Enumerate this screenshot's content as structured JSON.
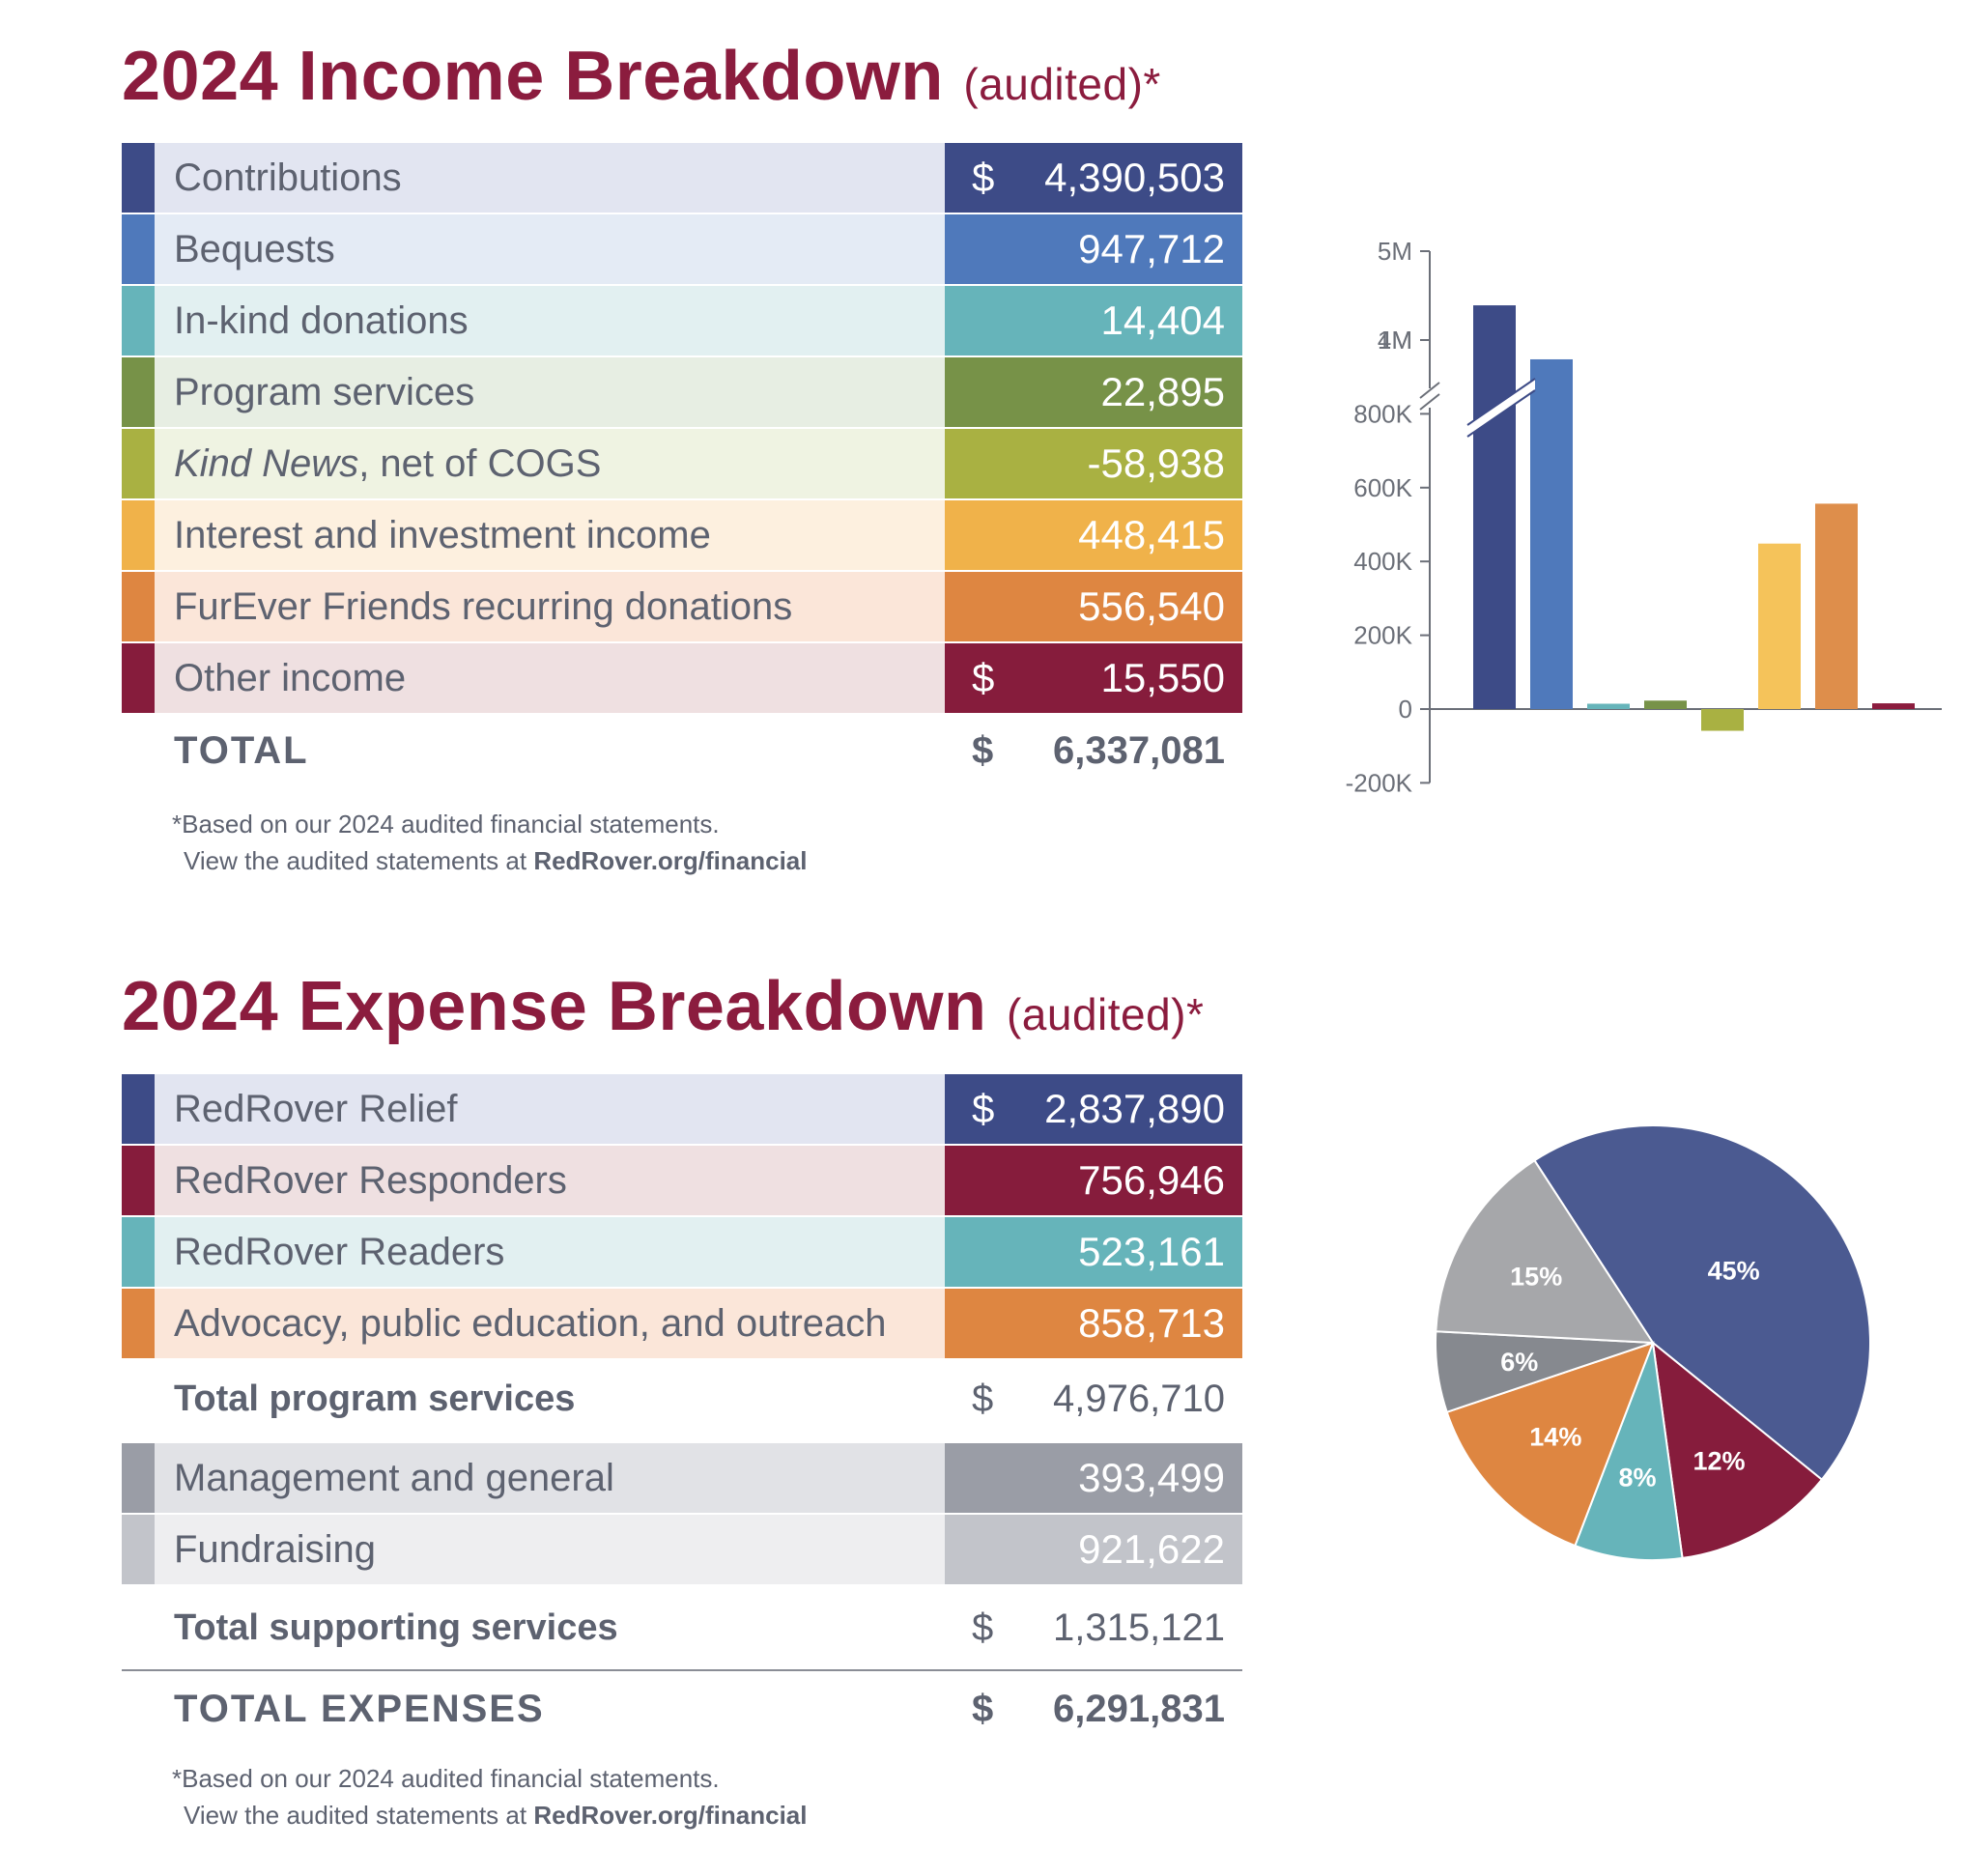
{
  "income": {
    "title": "2024 Income Breakdown",
    "title_suffix": "(audited)*",
    "rows": [
      {
        "label": "Contributions",
        "dollar": "$",
        "value": "4,390,503",
        "color": "#3d4b87",
        "bg": "#e2e5f1"
      },
      {
        "label": "Bequests",
        "dollar": "",
        "value": "947,712",
        "color": "#4f79bb",
        "bg": "#e4ebf5"
      },
      {
        "label": "In-kind donations",
        "dollar": "",
        "value": "14,404",
        "color": "#66b4ba",
        "bg": "#e2f0f1"
      },
      {
        "label": "Program services",
        "dollar": "",
        "value": "22,895",
        "color": "#779248",
        "bg": "#e7eee3"
      },
      {
        "label_italic": "Kind News",
        "label": ", net of COGS",
        "dollar": "",
        "value": "-58,938",
        "color": "#a9b142",
        "bg": "#eff3e2"
      },
      {
        "label": "Interest and investment income",
        "dollar": "",
        "value": "448,415",
        "color": "#f0b24a",
        "bg": "#fdf0df"
      },
      {
        "label": "FurEver Friends recurring donations",
        "dollar": "",
        "value": "556,540",
        "color": "#de8641",
        "bg": "#fbe6d9"
      },
      {
        "label": "Other income",
        "dollar": "$",
        "value": "15,550",
        "color": "#861c3c",
        "bg": "#efe0e1"
      }
    ],
    "total_label": "TOTAL",
    "total_dollar": "$",
    "total_value": "6,337,081",
    "note_line1": "*Based on our 2024 audited financial statements.",
    "note_line2_prefix": "View the audited statements at ",
    "note_link": "RedRover.org/financial"
  },
  "expense": {
    "title": "2024 Expense Breakdown",
    "title_suffix": "(audited)*",
    "program_rows": [
      {
        "label": "RedRover Relief",
        "dollar": "$",
        "value": "2,837,890",
        "color": "#3d4b87",
        "bg": "#e2e5f1"
      },
      {
        "label": "RedRover Responders",
        "dollar": "",
        "value": "756,946",
        "color": "#861c3c",
        "bg": "#efe0e1"
      },
      {
        "label": "RedRover Readers",
        "dollar": "",
        "value": "523,161",
        "color": "#66b4ba",
        "bg": "#e2f0f1"
      },
      {
        "label": "Advocacy, public education, and outreach",
        "dollar": "",
        "value": "858,713",
        "color": "#de8641",
        "bg": "#fbe6d9"
      }
    ],
    "program_total_label": "Total program services",
    "program_total_dollar": "$",
    "program_total_value": "4,976,710",
    "support_rows": [
      {
        "label": "Management and general",
        "dollar": "",
        "value": "393,499",
        "color": "#9a9da6",
        "bg": "#e1e2e6"
      },
      {
        "label": "Fundraising",
        "dollar": "",
        "value": "921,622",
        "color": "#c2c4ca",
        "bg": "#eeeef0"
      }
    ],
    "support_total_label": "Total supporting services",
    "support_total_dollar": "$",
    "support_total_value": "1,315,121",
    "total_label": "TOTAL EXPENSES",
    "total_dollar": "$",
    "total_value": "6,291,831",
    "note_line1": "*Based on our 2024 audited financial statements.",
    "note_line2_prefix": "View the audited statements at ",
    "note_link": "RedRover.org/financial"
  },
  "chart_data": [
    {
      "type": "bar",
      "title": "",
      "xlabel": "",
      "ylabel": "",
      "axis_break": [
        1000000,
        4000000
      ],
      "ylim": [
        -200000,
        5000000
      ],
      "yticks": [
        "5M",
        "4M",
        "1M",
        "800K",
        "600K",
        "400K",
        "200K",
        "0",
        "-200K"
      ],
      "ytick_values": [
        5000000,
        4000000,
        1000000,
        800000,
        600000,
        400000,
        200000,
        0,
        -200000
      ],
      "values": [
        4390503,
        947712,
        14404,
        22895,
        -58938,
        448415,
        556540,
        15550
      ],
      "colors": [
        "#3d4b87",
        "#4f79bb",
        "#66b4ba",
        "#779248",
        "#a9b142",
        "#f5c35a",
        "#de8e4b",
        "#8b1c3e"
      ],
      "grid": false
    },
    {
      "type": "pie",
      "title": "",
      "slices": [
        {
          "label": "45%",
          "value": 45,
          "color": "#4b5a91"
        },
        {
          "label": "12%",
          "value": 12,
          "color": "#861c3c"
        },
        {
          "label": "8%",
          "value": 8,
          "color": "#66b4ba"
        },
        {
          "label": "14%",
          "value": 14,
          "color": "#de8641"
        },
        {
          "label": "6%",
          "value": 6,
          "color": "#86898f"
        },
        {
          "label": "15%",
          "value": 15,
          "color": "#a6a7aa"
        }
      ]
    }
  ]
}
